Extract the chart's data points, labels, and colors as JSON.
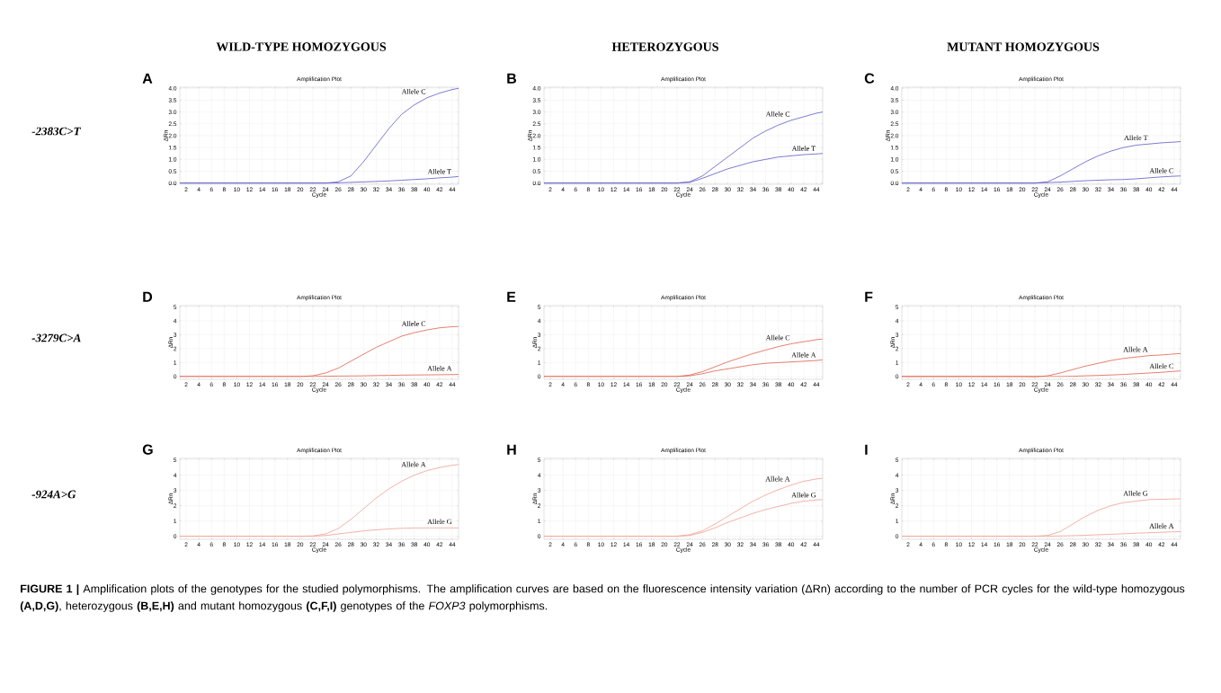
{
  "chart_data": [
    {
      "type": "line",
      "title": "Amplification Plot",
      "xlabel": "Cycle",
      "ylabel": "ΔRn",
      "grid": true,
      "x": [
        1,
        10,
        20,
        22,
        24,
        26,
        28,
        30,
        32,
        34,
        36,
        38,
        40,
        42,
        44,
        45
      ],
      "xlim": [
        1,
        45
      ],
      "xticks": [
        2,
        4,
        6,
        8,
        10,
        12,
        14,
        16,
        18,
        20,
        22,
        24,
        26,
        28,
        30,
        32,
        34,
        36,
        38,
        40,
        42,
        44
      ],
      "ylim": [
        -0.05,
        4.05
      ],
      "yticks": [
        {
          "value": 0,
          "label": "0.0"
        },
        {
          "value": 0.5,
          "label": "0.5"
        },
        {
          "value": 1,
          "label": "1.0"
        },
        {
          "value": 1.5,
          "label": "1.5"
        },
        {
          "value": 2,
          "label": "2.0"
        },
        {
          "value": 2.5,
          "label": "2.5"
        },
        {
          "value": 3,
          "label": "3.0"
        },
        {
          "value": 3.5,
          "label": "3.5"
        },
        {
          "value": 4,
          "label": "4.0"
        }
      ],
      "series": [
        {
          "name": "Allele C",
          "color": "#5a5ac8",
          "values": [
            0,
            0,
            0,
            0,
            0,
            0.05,
            0.3,
            0.9,
            1.6,
            2.3,
            2.9,
            3.3,
            3.6,
            3.8,
            3.95,
            4.0
          ]
        },
        {
          "name": "Allele T",
          "color": "#5a5ac8",
          "values": [
            0,
            0,
            0,
            0,
            0,
            0.01,
            0.03,
            0.05,
            0.07,
            0.09,
            0.12,
            0.15,
            0.18,
            0.22,
            0.25,
            0.28
          ]
        }
      ],
      "annotations": [
        "A",
        "WILD-TYPE HOMOZYGOUS",
        "-2383C>T"
      ]
    },
    {
      "type": "line",
      "title": "Amplification Plot",
      "xlabel": "Cycle",
      "ylabel": "ΔRn",
      "grid": true,
      "x": [
        1,
        10,
        20,
        22,
        24,
        26,
        28,
        30,
        32,
        34,
        36,
        38,
        40,
        42,
        44,
        45
      ],
      "xlim": [
        1,
        45
      ],
      "xticks": [
        2,
        4,
        6,
        8,
        10,
        12,
        14,
        16,
        18,
        20,
        22,
        24,
        26,
        28,
        30,
        32,
        34,
        36,
        38,
        40,
        42,
        44
      ],
      "ylim": [
        -0.05,
        4.05
      ],
      "yticks": [
        {
          "value": 0,
          "label": "0.0"
        },
        {
          "value": 0.5,
          "label": "0.5"
        },
        {
          "value": 1,
          "label": "1.0"
        },
        {
          "value": 1.5,
          "label": "1.5"
        },
        {
          "value": 2,
          "label": "2.0"
        },
        {
          "value": 2.5,
          "label": "2.5"
        },
        {
          "value": 3,
          "label": "3.0"
        },
        {
          "value": 3.5,
          "label": "3.5"
        },
        {
          "value": 4,
          "label": "4.0"
        }
      ],
      "series": [
        {
          "name": "Allele C",
          "color": "#5a5ac8",
          "values": [
            0,
            0,
            0,
            0,
            0.05,
            0.3,
            0.7,
            1.1,
            1.5,
            1.9,
            2.2,
            2.45,
            2.65,
            2.8,
            2.95,
            3.0
          ]
        },
        {
          "name": "Allele T",
          "color": "#5a5ac8",
          "values": [
            0,
            0,
            0,
            0,
            0.03,
            0.2,
            0.4,
            0.6,
            0.75,
            0.9,
            1.0,
            1.1,
            1.15,
            1.2,
            1.23,
            1.25
          ]
        }
      ],
      "annotations": [
        "B",
        "HETEROZYGOUS"
      ]
    },
    {
      "type": "line",
      "title": "Amplification Plot",
      "xlabel": "Cycle",
      "ylabel": "ΔRn",
      "grid": true,
      "x": [
        1,
        10,
        20,
        22,
        24,
        26,
        28,
        30,
        32,
        34,
        36,
        38,
        40,
        42,
        44,
        45
      ],
      "xlim": [
        1,
        45
      ],
      "xticks": [
        2,
        4,
        6,
        8,
        10,
        12,
        14,
        16,
        18,
        20,
        22,
        24,
        26,
        28,
        30,
        32,
        34,
        36,
        38,
        40,
        42,
        44
      ],
      "ylim": [
        -0.05,
        4.05
      ],
      "yticks": [
        {
          "value": 0,
          "label": "0.0"
        },
        {
          "value": 0.5,
          "label": "0.5"
        },
        {
          "value": 1,
          "label": "1.0"
        },
        {
          "value": 1.5,
          "label": "1.5"
        },
        {
          "value": 2,
          "label": "2.0"
        },
        {
          "value": 2.5,
          "label": "2.5"
        },
        {
          "value": 3,
          "label": "3.0"
        },
        {
          "value": 3.5,
          "label": "3.5"
        },
        {
          "value": 4,
          "label": "4.0"
        }
      ],
      "series": [
        {
          "name": "Allele T",
          "color": "#5a5ac8",
          "values": [
            0,
            0,
            0,
            0,
            0.05,
            0.3,
            0.6,
            0.9,
            1.15,
            1.35,
            1.5,
            1.6,
            1.65,
            1.7,
            1.73,
            1.75
          ]
        },
        {
          "name": "Allele C",
          "color": "#5a5ac8",
          "values": [
            0,
            0,
            0,
            0,
            0.02,
            0.04,
            0.07,
            0.1,
            0.12,
            0.14,
            0.15,
            0.18,
            0.22,
            0.26,
            0.29,
            0.3
          ]
        }
      ],
      "annotations": [
        "C",
        "MUTANT HOMOZYGOUS"
      ]
    },
    {
      "type": "line",
      "title": "Amplification Plot",
      "xlabel": "Cycle",
      "ylabel": "ΔRn",
      "grid": true,
      "x": [
        1,
        10,
        20,
        22,
        24,
        26,
        28,
        30,
        32,
        34,
        36,
        38,
        40,
        42,
        44,
        45
      ],
      "xlim": [
        1,
        45
      ],
      "xticks": [
        2,
        4,
        6,
        8,
        10,
        12,
        14,
        16,
        18,
        20,
        22,
        24,
        26,
        28,
        30,
        32,
        34,
        36,
        38,
        40,
        42,
        44
      ],
      "ylim": [
        -0.2,
        5.1
      ],
      "yticks": [
        0,
        1,
        2,
        3,
        4,
        5
      ],
      "series": [
        {
          "name": "Allele C",
          "color": "#e0604a",
          "values": [
            0,
            0,
            0,
            0.05,
            0.25,
            0.6,
            1.1,
            1.6,
            2.1,
            2.5,
            2.9,
            3.15,
            3.35,
            3.5,
            3.58,
            3.6
          ]
        },
        {
          "name": "Allele A",
          "color": "#e0604a",
          "values": [
            0,
            0,
            0,
            0,
            0.02,
            0.03,
            0.04,
            0.05,
            0.07,
            0.08,
            0.1,
            0.11,
            0.12,
            0.13,
            0.14,
            0.15
          ]
        }
      ],
      "annotations": [
        "D",
        "-3279C>A"
      ]
    },
    {
      "type": "line",
      "title": "Amplification Plot",
      "xlabel": "Cycle",
      "ylabel": "ΔRn",
      "grid": true,
      "x": [
        1,
        10,
        20,
        22,
        24,
        26,
        28,
        30,
        32,
        34,
        36,
        38,
        40,
        42,
        44,
        45
      ],
      "xlim": [
        1,
        45
      ],
      "xticks": [
        2,
        4,
        6,
        8,
        10,
        12,
        14,
        16,
        18,
        20,
        22,
        24,
        26,
        28,
        30,
        32,
        34,
        36,
        38,
        40,
        42,
        44
      ],
      "ylim": [
        -0.2,
        5.1
      ],
      "yticks": [
        0,
        1,
        2,
        3,
        4,
        5
      ],
      "series": [
        {
          "name": "Allele C",
          "color": "#e0604a",
          "values": [
            0,
            0,
            0,
            0,
            0.1,
            0.35,
            0.7,
            1.05,
            1.35,
            1.65,
            1.9,
            2.15,
            2.35,
            2.5,
            2.65,
            2.7
          ]
        },
        {
          "name": "Allele A",
          "color": "#e0604a",
          "values": [
            0,
            0,
            0,
            0,
            0.05,
            0.2,
            0.4,
            0.55,
            0.7,
            0.85,
            0.95,
            1.0,
            1.05,
            1.1,
            1.15,
            1.2
          ]
        }
      ],
      "annotations": [
        "E"
      ]
    },
    {
      "type": "line",
      "title": "Amplification Plot",
      "xlabel": "Cycle",
      "ylabel": "ΔRn",
      "grid": true,
      "x": [
        1,
        10,
        20,
        22,
        24,
        26,
        28,
        30,
        32,
        34,
        36,
        38,
        40,
        42,
        44,
        45
      ],
      "xlim": [
        1,
        45
      ],
      "xticks": [
        2,
        4,
        6,
        8,
        10,
        12,
        14,
        16,
        18,
        20,
        22,
        24,
        26,
        28,
        30,
        32,
        34,
        36,
        38,
        40,
        42,
        44
      ],
      "ylim": [
        -0.2,
        5.1
      ],
      "yticks": [
        0,
        1,
        2,
        3,
        4,
        5
      ],
      "series": [
        {
          "name": "Allele A",
          "color": "#e0604a",
          "values": [
            0,
            0,
            0,
            -0.02,
            0.05,
            0.25,
            0.5,
            0.75,
            0.95,
            1.15,
            1.3,
            1.4,
            1.5,
            1.55,
            1.62,
            1.65
          ]
        },
        {
          "name": "Allele C",
          "color": "#e0604a",
          "values": [
            0,
            0,
            0,
            0,
            0,
            0,
            0.02,
            0.05,
            0.08,
            0.11,
            0.15,
            0.2,
            0.25,
            0.3,
            0.37,
            0.4
          ]
        }
      ],
      "annotations": [
        "F"
      ]
    },
    {
      "type": "line",
      "title": "Amplification Plot",
      "xlabel": "Cycle",
      "ylabel": "ΔRn",
      "grid": true,
      "x": [
        1,
        10,
        20,
        22,
        24,
        26,
        28,
        30,
        32,
        34,
        36,
        38,
        40,
        42,
        44,
        45
      ],
      "xlim": [
        1,
        45
      ],
      "xticks": [
        2,
        4,
        6,
        8,
        10,
        12,
        14,
        16,
        18,
        20,
        22,
        24,
        26,
        28,
        30,
        32,
        34,
        36,
        38,
        40,
        42,
        44
      ],
      "ylim": [
        -0.2,
        5.1
      ],
      "yticks": [
        0,
        1,
        2,
        3,
        4,
        5
      ],
      "series": [
        {
          "name": "Allele A",
          "color": "#f0a090",
          "values": [
            0,
            0,
            0,
            0.02,
            0.15,
            0.5,
            1.1,
            1.8,
            2.5,
            3.1,
            3.6,
            4.0,
            4.3,
            4.5,
            4.65,
            4.7
          ]
        },
        {
          "name": "Allele G",
          "color": "#f0a090",
          "values": [
            0,
            0,
            0,
            0,
            0.05,
            0.15,
            0.25,
            0.35,
            0.42,
            0.48,
            0.52,
            0.54,
            0.55,
            0.55,
            0.55,
            0.55
          ]
        }
      ],
      "annotations": [
        "G",
        "-924A>G"
      ]
    },
    {
      "type": "line",
      "title": "Amplification Plot",
      "xlabel": "Cycle",
      "ylabel": "ΔRn",
      "grid": true,
      "x": [
        1,
        10,
        20,
        22,
        24,
        26,
        28,
        30,
        32,
        34,
        36,
        38,
        40,
        42,
        44,
        45
      ],
      "xlim": [
        1,
        45
      ],
      "xticks": [
        2,
        4,
        6,
        8,
        10,
        12,
        14,
        16,
        18,
        20,
        22,
        24,
        26,
        28,
        30,
        32,
        34,
        36,
        38,
        40,
        42,
        44
      ],
      "ylim": [
        -0.2,
        5.1
      ],
      "yticks": [
        0,
        1,
        2,
        3,
        4,
        5
      ],
      "series": [
        {
          "name": "Allele A",
          "color": "#f0a090",
          "values": [
            0,
            0,
            0,
            0,
            0.1,
            0.35,
            0.8,
            1.3,
            1.8,
            2.3,
            2.7,
            3.05,
            3.35,
            3.6,
            3.75,
            3.8
          ]
        },
        {
          "name": "Allele G",
          "color": "#f0a090",
          "values": [
            0,
            0,
            0,
            0,
            0.05,
            0.25,
            0.55,
            0.9,
            1.2,
            1.5,
            1.75,
            1.95,
            2.15,
            2.3,
            2.38,
            2.4
          ]
        }
      ],
      "annotations": [
        "H"
      ]
    },
    {
      "type": "line",
      "title": "Amplification Plot",
      "xlabel": "Cycle",
      "ylabel": "ΔRn",
      "grid": true,
      "x": [
        1,
        10,
        20,
        22,
        24,
        26,
        28,
        30,
        32,
        34,
        36,
        38,
        40,
        42,
        44,
        45
      ],
      "xlim": [
        1,
        45
      ],
      "xticks": [
        2,
        4,
        6,
        8,
        10,
        12,
        14,
        16,
        18,
        20,
        22,
        24,
        26,
        28,
        30,
        32,
        34,
        36,
        38,
        40,
        42,
        44
      ],
      "ylim": [
        -0.2,
        5.1
      ],
      "yticks": [
        0,
        1,
        2,
        3,
        4,
        5
      ],
      "series": [
        {
          "name": "Allele G",
          "color": "#f0a090",
          "values": [
            0,
            0,
            0,
            0,
            0.05,
            0.3,
            0.8,
            1.3,
            1.7,
            2.0,
            2.2,
            2.3,
            2.4,
            2.42,
            2.44,
            2.45
          ]
        },
        {
          "name": "Allele A",
          "color": "#f0a090",
          "values": [
            0,
            0,
            0,
            0,
            0,
            0.02,
            0.04,
            0.06,
            0.1,
            0.13,
            0.16,
            0.2,
            0.23,
            0.26,
            0.29,
            0.3
          ]
        }
      ],
      "annotations": [
        "I",
        "**FIGURE 1 |** Amplification plots of the genotypes for the studied polymorphisms. The amplification curves are based on the fluorescence intensity variation (ΔRn) according to the number of PCR cycles for the wild-type homozygous **(A,D,G)**, heterozygous **(B,E,H)** and mutant homozygous **(C,F,I)** genotypes of the *FOXP3* polymorphisms."
      ]
    }
  ]
}
